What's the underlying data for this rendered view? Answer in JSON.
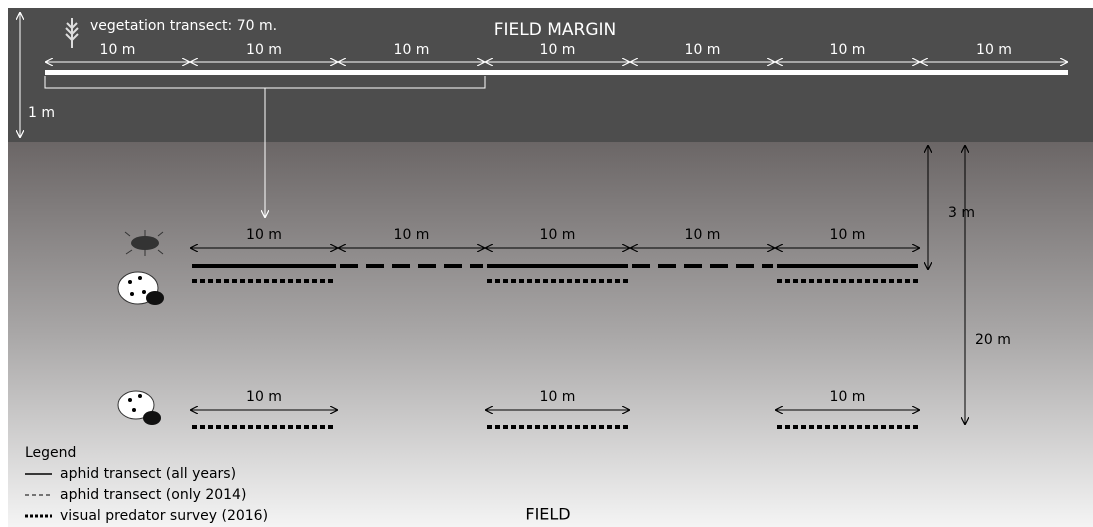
{
  "margin": {
    "title": "FIELD MARGIN",
    "transect_label": "vegetation transect: 70 m.",
    "segments": [
      "10 m",
      "10 m",
      "10 m",
      "10 m",
      "10 m",
      "10 m",
      "10 m"
    ],
    "height_label": "1 m"
  },
  "field": {
    "title": "FIELD",
    "row1": {
      "segments": [
        "10 m",
        "10 m",
        "10 m",
        "10 m",
        "10 m"
      ]
    },
    "row2": {
      "segments": [
        "10 m",
        "10 m",
        "10 m"
      ]
    },
    "distance_short": "3 m",
    "distance_long": "20 m"
  },
  "legend": {
    "title": "Legend",
    "items": [
      "aphid transect (all years)",
      "aphid transect (only 2014)",
      "visual predator survey (2016)"
    ]
  }
}
